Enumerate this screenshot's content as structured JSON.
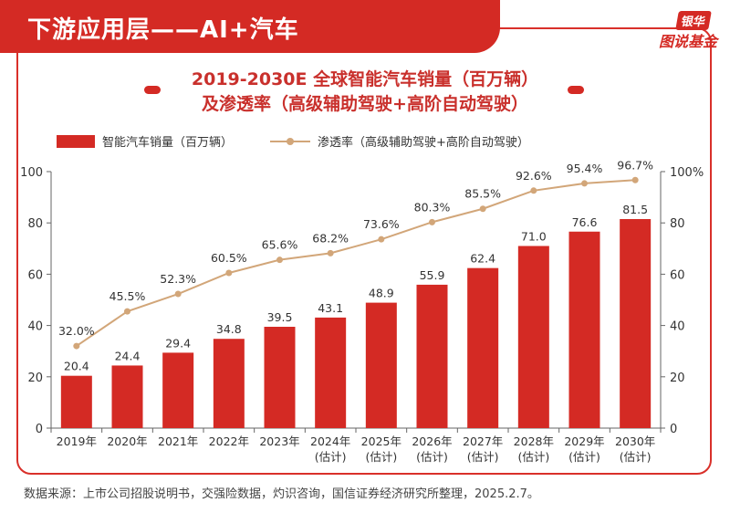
{
  "header": {
    "title": "下游应用层——AI+汽车"
  },
  "logo": {
    "top": "银华",
    "bottom": "图说基金"
  },
  "chart_title": {
    "line1": "2019-2030E 全球智能汽车销量（百万辆）",
    "line2": "及渗透率（高级辅助驾驶+高阶自动驾驶）"
  },
  "legend": {
    "bar": "智能汽车销量（百万辆）",
    "line": "渗透率（高级辅助驾驶+高阶自动驾驶）"
  },
  "source": "数据来源：上市公司招股说明书，交强险数据，灼识咨询，国信证券经济研究所整理，2025.2.7。",
  "colors": {
    "bar": "#d42a24",
    "line": "#d2a679",
    "axis": "#666666"
  },
  "chart_data": {
    "type": "bar",
    "categories": [
      [
        "2019年"
      ],
      [
        "2020年"
      ],
      [
        "2021年"
      ],
      [
        "2022年"
      ],
      [
        "2023年"
      ],
      [
        "2024年",
        "(估计)"
      ],
      [
        "2025年",
        "(估计)"
      ],
      [
        "2026年",
        "(估计)"
      ],
      [
        "2027年",
        "(估计)"
      ],
      [
        "2028年",
        "(估计)"
      ],
      [
        "2029年",
        "(估计)"
      ],
      [
        "2030年",
        "(估计)"
      ]
    ],
    "series": [
      {
        "name": "智能汽车销量（百万辆）",
        "type": "bar",
        "axis": "left",
        "values": [
          20.4,
          24.4,
          29.4,
          34.8,
          39.5,
          43.1,
          48.9,
          55.9,
          62.4,
          71.0,
          76.6,
          81.5
        ],
        "labels": [
          "20.4",
          "24.4",
          "29.4",
          "34.8",
          "39.5",
          "43.1",
          "48.9",
          "55.9",
          "62.4",
          "71.0",
          "76.6",
          "81.5"
        ]
      },
      {
        "name": "渗透率（高级辅助驾驶+高阶自动驾驶）",
        "type": "line",
        "axis": "right",
        "values": [
          32.0,
          45.5,
          52.3,
          60.5,
          65.6,
          68.2,
          73.6,
          80.3,
          85.5,
          92.6,
          95.4,
          96.7
        ],
        "labels": [
          "32.0%",
          "45.5%",
          "52.3%",
          "60.5%",
          "65.6%",
          "68.2%",
          "73.6%",
          "80.3%",
          "85.5%",
          "92.6%",
          "95.4%",
          "96.7%"
        ]
      }
    ],
    "y_left": {
      "range": [
        0,
        100
      ],
      "ticks": [
        "0",
        "20",
        "40",
        "60",
        "80",
        "100"
      ]
    },
    "y_right": {
      "range": [
        0,
        100
      ],
      "ticks": [
        "0",
        "20",
        "40",
        "60",
        "80",
        "100%"
      ]
    },
    "grid": false,
    "legend_position": "top-left"
  }
}
